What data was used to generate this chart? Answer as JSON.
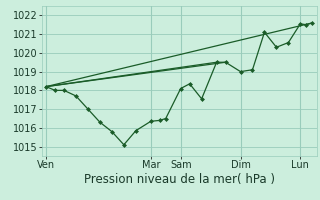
{
  "background_color": "#cceedd",
  "grid_color": "#99ccbb",
  "line_color": "#1a5c28",
  "marker_color": "#1a5c28",
  "xlabel": "Pression niveau de la mer( hPa )",
  "xlabel_fontsize": 8.5,
  "tick_fontsize": 7,
  "ylim": [
    1014.5,
    1022.5
  ],
  "yticks": [
    1015,
    1016,
    1017,
    1018,
    1019,
    1020,
    1021,
    1022
  ],
  "x_day_labels": [
    "Ven",
    "Mar",
    "Sam",
    "Dim",
    "Lun"
  ],
  "x_day_positions": [
    0.0,
    3.5,
    4.5,
    6.5,
    8.5
  ],
  "xlim": [
    -0.15,
    9.05
  ],
  "series": [
    [
      0.0,
      1018.2
    ],
    [
      0.3,
      1018.0
    ],
    [
      0.6,
      1018.0
    ],
    [
      1.0,
      1017.7
    ],
    [
      1.4,
      1017.0
    ],
    [
      1.8,
      1016.3
    ],
    [
      2.2,
      1015.8
    ],
    [
      2.6,
      1015.1
    ],
    [
      3.0,
      1015.85
    ],
    [
      3.5,
      1016.35
    ],
    [
      3.8,
      1016.4
    ],
    [
      4.0,
      1016.5
    ],
    [
      4.5,
      1018.1
    ],
    [
      4.8,
      1018.35
    ],
    [
      5.2,
      1017.55
    ],
    [
      5.7,
      1019.5
    ],
    [
      6.0,
      1019.5
    ],
    [
      6.5,
      1019.0
    ],
    [
      6.9,
      1019.1
    ],
    [
      7.3,
      1021.1
    ],
    [
      7.7,
      1020.3
    ],
    [
      8.1,
      1020.55
    ],
    [
      8.5,
      1021.55
    ],
    [
      8.7,
      1021.5
    ],
    [
      8.9,
      1021.6
    ]
  ],
  "straight_lines": [
    [
      [
        0.0,
        1018.2
      ],
      [
        8.9,
        1021.6
      ]
    ],
    [
      [
        0.0,
        1018.2
      ],
      [
        5.7,
        1019.5
      ]
    ],
    [
      [
        0.0,
        1018.2
      ],
      [
        6.0,
        1019.5
      ]
    ]
  ],
  "figsize": [
    3.2,
    2.0
  ],
  "dpi": 100
}
